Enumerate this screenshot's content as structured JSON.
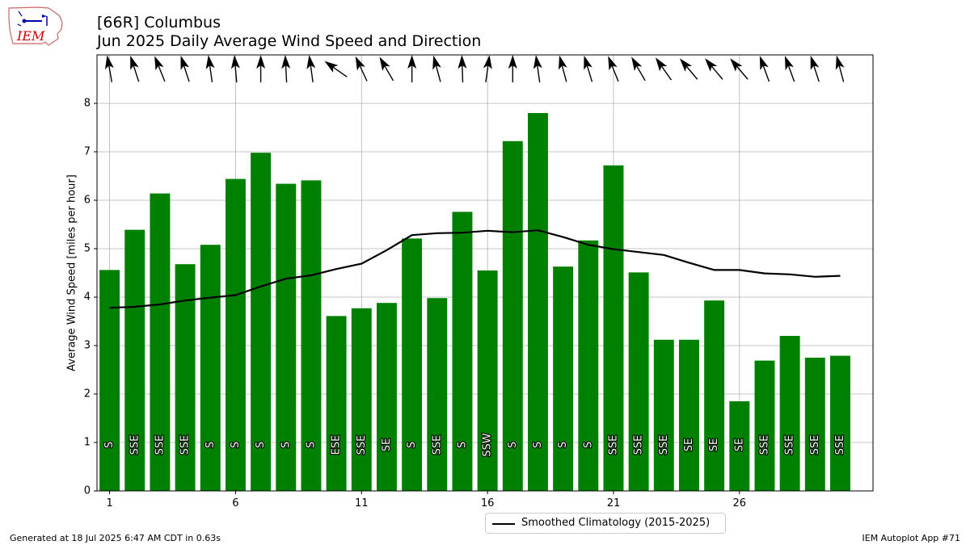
{
  "header": {
    "title_line1": "[66R] Columbus",
    "title_line2": "Jun 2025 Daily Average Wind Speed and Direction",
    "logo_text": "IEM"
  },
  "footer": {
    "generated": "Generated at 18 Jul 2025 6:47 AM CDT in 0.63s",
    "app": "IEM Autoplot App #71"
  },
  "legend": {
    "label": "Smoothed Climatology (2015-2025)"
  },
  "colors": {
    "bar": "#008000",
    "climatology_line": "#000000",
    "grid": "#b0b0b0",
    "label_text": "#ffffff"
  },
  "chart_data": {
    "type": "bar",
    "ylabel": "Average Wind Speed [miles per hour]",
    "xlim": [
      0.5,
      31.3
    ],
    "ylim": [
      0,
      9.0
    ],
    "x_ticks": [
      1,
      6,
      11,
      16,
      21,
      26
    ],
    "y_ticks": [
      0,
      1,
      2,
      3,
      4,
      5,
      6,
      7,
      8
    ],
    "grid": true,
    "legend_position": "bottom-center",
    "days": [
      1,
      2,
      3,
      4,
      5,
      6,
      7,
      8,
      9,
      10,
      11,
      12,
      13,
      14,
      15,
      16,
      17,
      18,
      19,
      20,
      21,
      22,
      23,
      24,
      25,
      26,
      27,
      28,
      29,
      30
    ],
    "avg_wind_speed": [
      4.56,
      5.39,
      6.14,
      4.68,
      5.08,
      6.44,
      6.98,
      6.34,
      6.41,
      3.61,
      3.77,
      3.88,
      5.21,
      3.98,
      5.76,
      4.55,
      7.22,
      7.8,
      4.63,
      5.17,
      6.72,
      4.51,
      3.12,
      3.12,
      3.93,
      1.85,
      2.69,
      3.2,
      2.75,
      2.79
    ],
    "direction_labels": [
      "S",
      "SSE",
      "SSE",
      "SSE",
      "S",
      "S",
      "S",
      "S",
      "S",
      "ESE",
      "SSE",
      "SE",
      "S",
      "SSE",
      "S",
      "SSW",
      "S",
      "S",
      "S",
      "S",
      "SSE",
      "SSE",
      "SSE",
      "SE",
      "SE",
      "SE",
      "SSE",
      "SSE",
      "SSE",
      "SSE"
    ],
    "direction_degrees": [
      170,
      162,
      158,
      162,
      172,
      175,
      180,
      177,
      172,
      125,
      155,
      150,
      180,
      165,
      178,
      188,
      180,
      172,
      165,
      163,
      158,
      150,
      145,
      140,
      140,
      140,
      160,
      160,
      162,
      165
    ],
    "climatology": {
      "name": "Smoothed Climatology (2015-2025)",
      "values": [
        3.78,
        3.8,
        3.85,
        3.93,
        3.99,
        4.04,
        4.22,
        4.38,
        4.45,
        4.58,
        4.69,
        4.97,
        5.28,
        5.32,
        5.33,
        5.37,
        5.34,
        5.38,
        5.24,
        5.08,
        4.99,
        4.93,
        4.87,
        4.71,
        4.56,
        4.56,
        4.49,
        4.47,
        4.42,
        4.44
      ]
    }
  }
}
